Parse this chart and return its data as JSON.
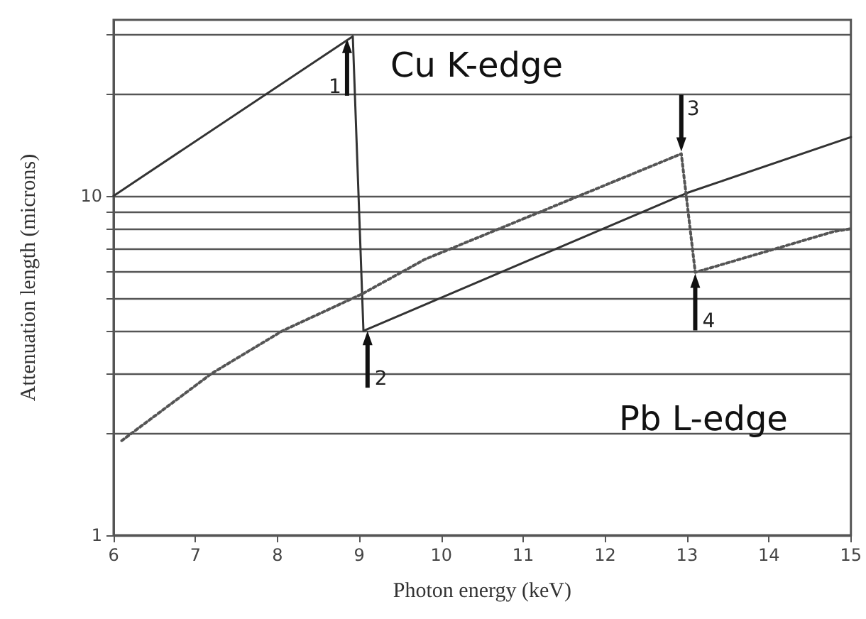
{
  "chart_data": {
    "type": "line",
    "xlabel": "Photon energy (keV)",
    "ylabel": "Attenuation length (microns)",
    "log": "y",
    "xlim": [
      6,
      15
    ],
    "xticks": [
      6,
      7,
      8,
      9,
      10,
      11,
      12,
      13,
      14,
      15
    ],
    "ylim": [
      1,
      33
    ],
    "yticks": [
      1,
      {
        "value": 2,
        "label": null
      },
      {
        "value": 3,
        "label": null
      },
      {
        "value": 4,
        "label": null
      },
      {
        "value": 5,
        "label": null
      },
      {
        "value": 6,
        "label": null
      },
      {
        "value": 7,
        "label": null
      },
      {
        "value": 8,
        "label": null
      },
      {
        "value": 9,
        "label": null
      },
      10,
      {
        "value": 20,
        "label": null
      },
      {
        "value": 30,
        "label": null
      }
    ],
    "grid": "y",
    "marker": "none",
    "series": [
      {
        "color": "#333333",
        "line_style": "solid",
        "x": [
          6,
          8.92,
          9.05,
          13,
          15
        ],
        "values": [
          10,
          29.5,
          4.0,
          10.2,
          14.9
        ]
      },
      {
        "color": "#555555",
        "line_style": "dotted",
        "x": [
          6.1,
          7.2,
          8.06,
          9.04,
          9.8,
          12.93,
          13.1,
          14.8,
          15
        ],
        "values": [
          1.9,
          3.0,
          4.0,
          5.15,
          6.5,
          13.3,
          5.95,
          7.86,
          8.0
        ]
      }
    ],
    "annotations": [
      "Cu K-edge",
      "Pb L-edge",
      {
        "text": "1",
        "x": 8.85,
        "y": 29
      },
      {
        "text": "2",
        "x": 9.1,
        "y": 4.0
      },
      {
        "text": "3",
        "x": 12.93,
        "y": 13.5
      },
      {
        "text": "4",
        "x": 13.1,
        "y": 5.9
      }
    ]
  }
}
